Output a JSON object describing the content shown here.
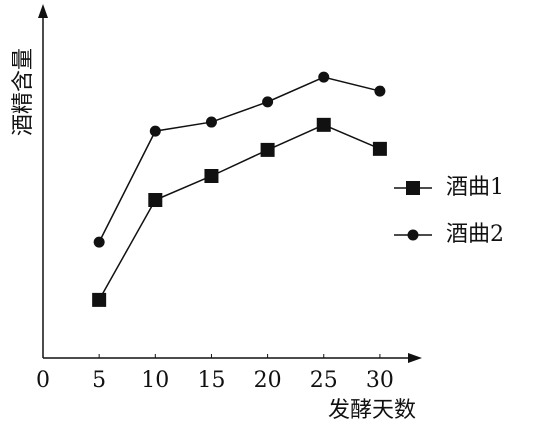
{
  "chart_data": {
    "type": "line",
    "xlabel": "发酵天数",
    "ylabel": "酒精含量",
    "xlim": [
      0,
      33
    ],
    "xticks": [
      0,
      5,
      10,
      15,
      20,
      25,
      30
    ],
    "ylim": [
      0,
      10
    ],
    "legend": "right",
    "series": [
      {
        "name": "酒曲1",
        "color": "#111111",
        "marker": "square",
        "x": [
          5,
          10,
          15,
          20,
          25,
          30
        ],
        "values": [
          1.67,
          4.54,
          5.23,
          5.98,
          6.7,
          6.01
        ]
      },
      {
        "name": "酒曲2",
        "color": "#111111",
        "marker": "circle",
        "x": [
          5,
          10,
          15,
          20,
          25,
          30
        ],
        "values": [
          3.33,
          6.52,
          6.78,
          7.36,
          8.07,
          7.67
        ]
      }
    ]
  }
}
